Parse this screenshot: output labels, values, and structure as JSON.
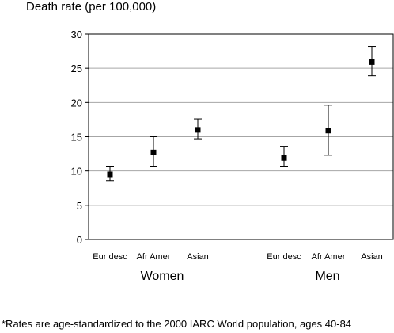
{
  "chart_data": {
    "type": "scatter",
    "title": "",
    "ylabel": "Death rate (per 100,000)",
    "xlabel": "",
    "ylim": [
      0,
      30
    ],
    "yticks": [
      0,
      5,
      10,
      15,
      20,
      25,
      30
    ],
    "grid": true,
    "categories": [
      "Eur desc",
      "Afr Amer",
      "Asian",
      "Eur desc",
      "Afr Amer",
      "Asian"
    ],
    "groups": [
      {
        "label": "Women",
        "categories": [
          "Eur desc",
          "Afr Amer",
          "Asian"
        ]
      },
      {
        "label": "Men",
        "categories": [
          "Eur desc",
          "Afr Amer",
          "Asian"
        ]
      }
    ],
    "points": [
      {
        "group": "Women",
        "category": "Eur desc",
        "value": 9.5,
        "lower": 8.6,
        "upper": 10.6
      },
      {
        "group": "Women",
        "category": "Afr Amer",
        "value": 12.7,
        "lower": 10.6,
        "upper": 15.0
      },
      {
        "group": "Women",
        "category": "Asian",
        "value": 16.0,
        "lower": 14.7,
        "upper": 17.6
      },
      {
        "group": "Men",
        "category": "Eur desc",
        "value": 11.9,
        "lower": 10.6,
        "upper": 13.6
      },
      {
        "group": "Men",
        "category": "Afr Amer",
        "value": 15.9,
        "lower": 12.3,
        "upper": 19.6
      },
      {
        "group": "Men",
        "category": "Asian",
        "value": 25.9,
        "lower": 23.9,
        "upper": 28.2
      }
    ],
    "footnote": "*Rates are age-standardized to the 2000 IARC World population, ages 40-84"
  }
}
